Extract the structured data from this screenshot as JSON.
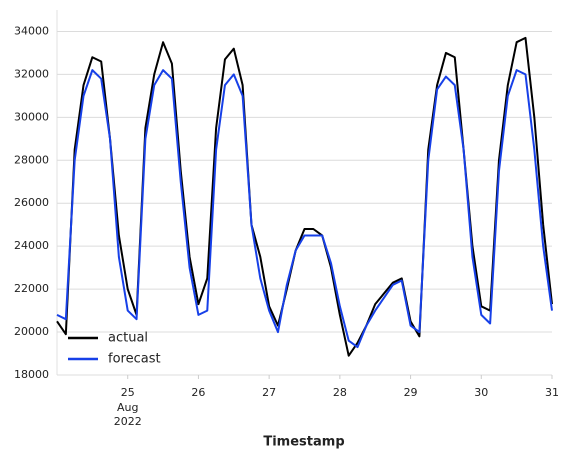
{
  "chart_data": {
    "type": "line",
    "xlabel": "Timestamp",
    "x": [
      "2022-08-24T00:00",
      "2022-08-24T03:00",
      "2022-08-24T06:00",
      "2022-08-24T09:00",
      "2022-08-24T12:00",
      "2022-08-24T15:00",
      "2022-08-24T18:00",
      "2022-08-24T21:00",
      "2022-08-25T00:00",
      "2022-08-25T03:00",
      "2022-08-25T06:00",
      "2022-08-25T09:00",
      "2022-08-25T12:00",
      "2022-08-25T15:00",
      "2022-08-25T18:00",
      "2022-08-25T21:00",
      "2022-08-26T00:00",
      "2022-08-26T03:00",
      "2022-08-26T06:00",
      "2022-08-26T09:00",
      "2022-08-26T12:00",
      "2022-08-26T15:00",
      "2022-08-26T18:00",
      "2022-08-26T21:00",
      "2022-08-27T00:00",
      "2022-08-27T03:00",
      "2022-08-27T06:00",
      "2022-08-27T09:00",
      "2022-08-27T12:00",
      "2022-08-27T15:00",
      "2022-08-27T18:00",
      "2022-08-27T21:00",
      "2022-08-28T00:00",
      "2022-08-28T03:00",
      "2022-08-28T06:00",
      "2022-08-28T09:00",
      "2022-08-28T12:00",
      "2022-08-28T15:00",
      "2022-08-28T18:00",
      "2022-08-28T21:00",
      "2022-08-29T00:00",
      "2022-08-29T03:00",
      "2022-08-29T06:00",
      "2022-08-29T09:00",
      "2022-08-29T12:00",
      "2022-08-29T15:00",
      "2022-08-29T18:00",
      "2022-08-29T21:00",
      "2022-08-30T00:00",
      "2022-08-30T03:00",
      "2022-08-30T06:00",
      "2022-08-30T09:00",
      "2022-08-30T12:00",
      "2022-08-30T15:00",
      "2022-08-30T18:00",
      "2022-08-30T21:00",
      "2022-08-31T00:00"
    ],
    "series": [
      {
        "name": "actual",
        "color": "#000000",
        "values": [
          20500,
          19900,
          28500,
          31500,
          32800,
          32600,
          29000,
          24500,
          22000,
          20800,
          29500,
          32000,
          33500,
          32500,
          27500,
          23500,
          21300,
          22500,
          29500,
          32700,
          33200,
          31500,
          25000,
          23500,
          21200,
          20300,
          22000,
          23800,
          24800,
          24800,
          24500,
          23000,
          20800,
          18900,
          19500,
          20300,
          21300,
          21800,
          22300,
          22500,
          20500,
          19800,
          28500,
          31500,
          33000,
          32800,
          28500,
          24000,
          21200,
          21000,
          28000,
          31500,
          33500,
          33700,
          30000,
          25000,
          21300
        ]
      },
      {
        "name": "forecast",
        "color": "#1740e8",
        "values": [
          20800,
          20600,
          28000,
          31000,
          32200,
          31800,
          29000,
          23500,
          21000,
          20600,
          29000,
          31500,
          32200,
          31800,
          27000,
          23000,
          20800,
          21000,
          28500,
          31500,
          32000,
          31000,
          25000,
          22500,
          21000,
          20000,
          22200,
          23800,
          24500,
          24500,
          24500,
          23200,
          21200,
          19600,
          19300,
          20300,
          21000,
          21600,
          22200,
          22400,
          20300,
          20000,
          28000,
          31300,
          31900,
          31500,
          28500,
          23500,
          20800,
          20400,
          27500,
          31000,
          32200,
          32000,
          28500,
          24000,
          21000
        ]
      }
    ],
    "xlim": [
      "2022-08-24T00:00",
      "2022-08-31T00:00"
    ],
    "xticks": [
      {
        "value": "2022-08-25T00:00",
        "label": "25"
      },
      {
        "value": "2022-08-26T00:00",
        "label": "26"
      },
      {
        "value": "2022-08-27T00:00",
        "label": "27"
      },
      {
        "value": "2022-08-28T00:00",
        "label": "28"
      },
      {
        "value": "2022-08-29T00:00",
        "label": "29"
      },
      {
        "value": "2022-08-30T00:00",
        "label": "30"
      },
      {
        "value": "2022-08-31T00:00",
        "label": "31"
      }
    ],
    "xtick_offset_label": [
      "Aug",
      "2022"
    ],
    "ylim": [
      18000,
      35000
    ],
    "yticks": [
      18000,
      20000,
      22000,
      24000,
      26000,
      28000,
      30000,
      32000,
      34000
    ],
    "grid": true,
    "legend": "lower left"
  }
}
